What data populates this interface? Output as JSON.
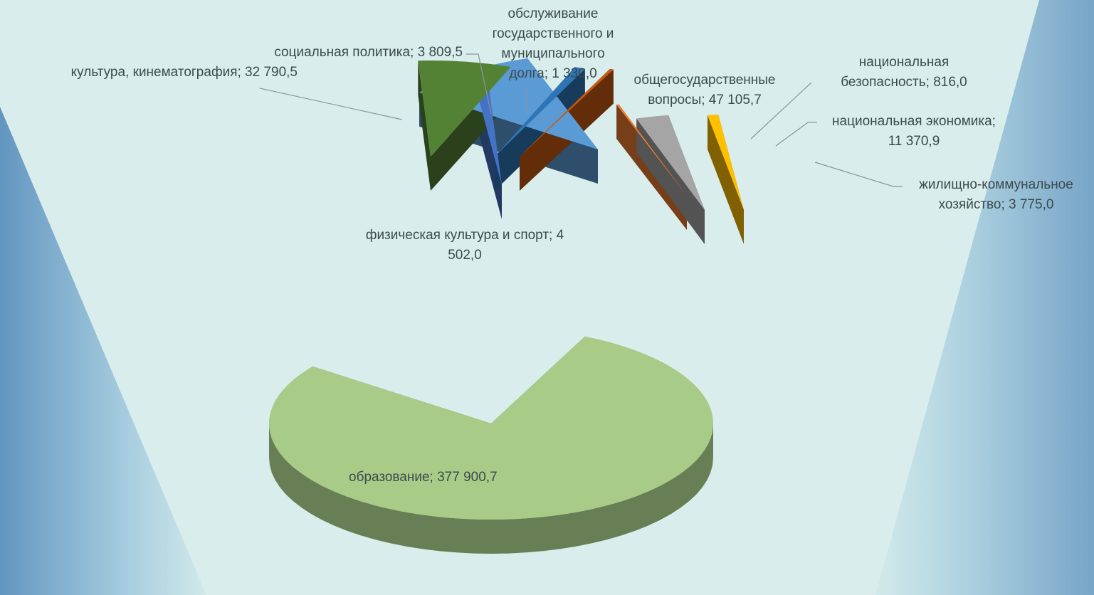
{
  "chart_data": {
    "type": "pie",
    "style": "3d-exploded",
    "title": "",
    "slices": [
      {
        "label": "образование",
        "value": 377900.7,
        "value_text": "377 900,7",
        "color": "#a8cc88"
      },
      {
        "label": "общегосударственные вопросы",
        "value": 47105.7,
        "value_text": "47 105,7",
        "color": "#5b9bd5"
      },
      {
        "label": "национальная безопасность",
        "value": 816.0,
        "value_text": "816,0",
        "color": "#ed7d31"
      },
      {
        "label": "национальная экономика",
        "value": 11370.9,
        "value_text": "11 370,9",
        "color": "#a5a5a5"
      },
      {
        "label": "жилищно-коммунальное хозяйство",
        "value": 3775.0,
        "value_text": "3 775,0",
        "color": "#ffc000"
      },
      {
        "label": "физическая культура и спорт",
        "value": 4502.0,
        "value_text": "4 502,0",
        "color": "#4472c4"
      },
      {
        "label": "культура, кинематография",
        "value": 32790.5,
        "value_text": "32 790,5",
        "color": "#548235"
      },
      {
        "label": "социальная политика",
        "value": 3809.5,
        "value_text": "3 809,5",
        "color": "#2e75b6"
      },
      {
        "label": "обслуживание государственного и муниципального долга",
        "value": 1330.0,
        "value_text": "1 330,0",
        "color": "#c55a11"
      }
    ]
  },
  "labels": {
    "education": "образование;  377 900,7",
    "general": [
      "общегосударственные",
      "вопросы;  47 105,7"
    ],
    "security": [
      "национальная",
      "безопасность;   816,0"
    ],
    "economy": [
      "национальная экономика;",
      "11 370,9"
    ],
    "housing": [
      "жилищно-коммунальное",
      "хозяйство;  3 775,0"
    ],
    "sport": [
      "физическая культура и спорт;  4",
      "502,0"
    ],
    "culture": "культура, кинематография;  32 790,5",
    "social": "социальная политика;  3 809,5",
    "debt": [
      "обслуживание",
      "государственного и",
      "муниципального",
      "долга;  1 330,0"
    ]
  }
}
